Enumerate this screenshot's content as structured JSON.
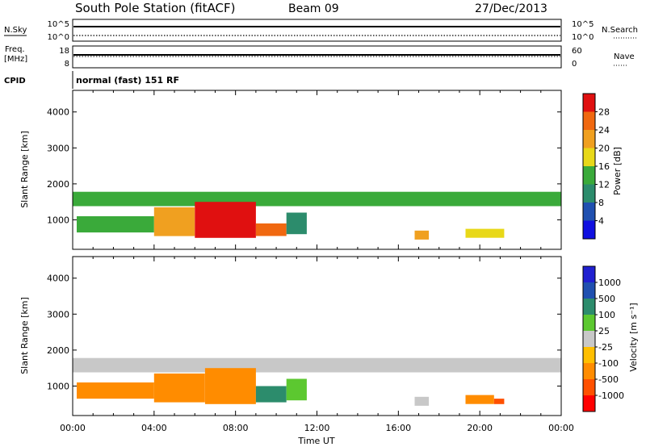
{
  "header": {
    "title": "South Pole Station (fitACF)",
    "beam": "Beam 09",
    "date": "27/Dec/2013"
  },
  "panels": {
    "nsky": {
      "label": "N.Sky",
      "tick_top": "10^5",
      "tick_bottom": "10^0",
      "right_label": "N.Search",
      "right_tick_top": "10^5",
      "right_tick_bottom": "10^0"
    },
    "freq": {
      "label_line1": "Freq.",
      "label_line2": "[MHz]",
      "tick_top": "18",
      "tick_bottom": "8",
      "right_label": "Nave",
      "right_tick_top": "60",
      "right_tick_bottom": "0"
    },
    "cpid": {
      "label": "CPID",
      "text": "normal (fast) 151 RF"
    }
  },
  "colors": {
    "power_scale": [
      "#1010e0",
      "#2050b0",
      "#2c8c6c",
      "#3aaa3a",
      "#e8d818",
      "#f0a020",
      "#f06810",
      "#e01010"
    ],
    "velocity_scale": [
      "#ff0000",
      "#ff5000",
      "#ff8c00",
      "#ffbf00",
      "#c8c8c8",
      "#5cc830",
      "#2c8c6c",
      "#2050b0",
      "#2020d0"
    ]
  },
  "chart_data": [
    {
      "type": "heatmap",
      "name": "power",
      "xlabel": "",
      "ylabel": "Slant Range [km]",
      "xlim": [
        "00:00",
        "24:00"
      ],
      "ylim": [
        180,
        4600
      ],
      "yticks": [
        1000,
        2000,
        3000,
        4000
      ],
      "xticks": [
        "00:00",
        "04:00",
        "08:00",
        "12:00",
        "16:00",
        "20:00",
        "00:00"
      ],
      "colorbar": {
        "label": "Power [dB]",
        "ticks": [
          "4",
          "8",
          "12",
          "16",
          "20",
          "24",
          "28"
        ]
      },
      "regions": [
        {
          "t0": 0.0,
          "t1": 24.0,
          "r0": 1380,
          "r1": 1780,
          "value": 12
        },
        {
          "t0": 0.2,
          "t1": 4.0,
          "r0": 650,
          "r1": 1100,
          "value": 14
        },
        {
          "t0": 4.0,
          "t1": 6.0,
          "r0": 550,
          "r1": 1350,
          "value": 22
        },
        {
          "t0": 6.0,
          "t1": 9.0,
          "r0": 500,
          "r1": 1500,
          "value": 28
        },
        {
          "t0": 9.0,
          "t1": 10.5,
          "r0": 550,
          "r1": 900,
          "value": 26
        },
        {
          "t0": 10.5,
          "t1": 11.5,
          "r0": 600,
          "r1": 1200,
          "value": 8
        },
        {
          "t0": 16.8,
          "t1": 17.5,
          "r0": 450,
          "r1": 700,
          "value": 20
        },
        {
          "t0": 19.3,
          "t1": 21.2,
          "r0": 500,
          "r1": 750,
          "value": 16
        }
      ]
    },
    {
      "type": "heatmap",
      "name": "velocity",
      "xlabel": "Time UT",
      "ylabel": "Slant Range [km]",
      "xlim": [
        "00:00",
        "24:00"
      ],
      "ylim": [
        180,
        4600
      ],
      "yticks": [
        1000,
        2000,
        3000,
        4000
      ],
      "xticks": [
        "00:00",
        "04:00",
        "08:00",
        "12:00",
        "16:00",
        "20:00",
        "00:00"
      ],
      "colorbar": {
        "label": "Velocity [m s⁻¹]",
        "ticks": [
          "1000",
          "500",
          "100",
          "25",
          "-25",
          "-100",
          "-500",
          "-1000"
        ]
      },
      "regions": [
        {
          "t0": 0.0,
          "t1": 24.0,
          "r0": 1380,
          "r1": 1780,
          "value": 0
        },
        {
          "t0": 0.2,
          "t1": 4.0,
          "r0": 650,
          "r1": 1100,
          "value": -300
        },
        {
          "t0": 4.0,
          "t1": 6.5,
          "r0": 550,
          "r1": 1350,
          "value": -300
        },
        {
          "t0": 6.5,
          "t1": 9.0,
          "r0": 500,
          "r1": 1500,
          "value": -150
        },
        {
          "t0": 9.0,
          "t1": 10.5,
          "r0": 550,
          "r1": 1000,
          "value": 200
        },
        {
          "t0": 10.5,
          "t1": 11.5,
          "r0": 600,
          "r1": 1200,
          "value": 80
        },
        {
          "t0": 16.8,
          "t1": 17.5,
          "r0": 450,
          "r1": 700,
          "value": 0
        },
        {
          "t0": 19.3,
          "t1": 20.7,
          "r0": 500,
          "r1": 750,
          "value": -400
        },
        {
          "t0": 20.7,
          "t1": 21.2,
          "r0": 500,
          "r1": 650,
          "value": -800
        }
      ]
    }
  ]
}
